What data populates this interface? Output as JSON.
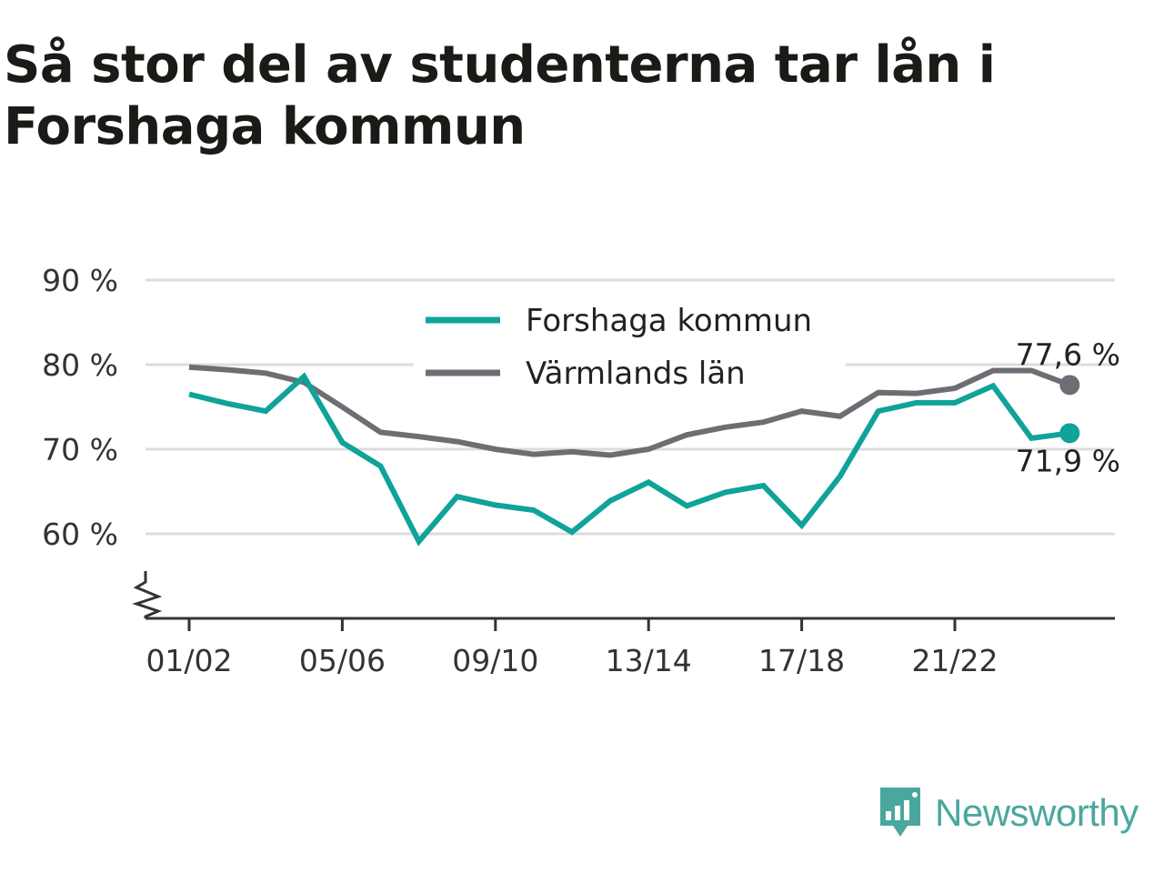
{
  "title": "Så stor del av studenterna tar lån i Forshaga kommun",
  "brand": {
    "name": "Newsworthy",
    "icon": "newsworthy-logo-icon",
    "color": "#4aa79e"
  },
  "chart_data": {
    "type": "line",
    "title": "Så stor del av studenterna tar lån i Forshaga kommun",
    "xlabel": "",
    "ylabel": "",
    "x": [
      "01/02",
      "02/03",
      "03/04",
      "04/05",
      "05/06",
      "06/07",
      "07/08",
      "08/09",
      "09/10",
      "10/11",
      "11/12",
      "12/13",
      "13/14",
      "14/15",
      "15/16",
      "16/17",
      "17/18",
      "18/19",
      "19/20",
      "20/21",
      "21/22",
      "22/23",
      "23/24",
      "24/25"
    ],
    "x_tick_labels": [
      "01/02",
      "05/06",
      "09/10",
      "13/14",
      "17/18",
      "21/22"
    ],
    "y_tick_labels": [
      "90 %",
      "80 %",
      "70 %",
      "60 %"
    ],
    "y_ticks": [
      90,
      80,
      70,
      60
    ],
    "ylim": [
      50,
      90
    ],
    "grid": true,
    "legend_position": "top-center",
    "axis_break": true,
    "series": [
      {
        "name": "Forshaga kommun",
        "color": "#0fa39a",
        "values": [
          76.5,
          75.4,
          74.5,
          78.6,
          70.8,
          68.0,
          59.1,
          64.4,
          63.4,
          62.8,
          60.2,
          63.9,
          66.1,
          63.3,
          64.9,
          65.7,
          61.0,
          66.8,
          74.5,
          75.5,
          75.5,
          77.5,
          71.3,
          71.9
        ],
        "end_label": "71,9 %"
      },
      {
        "name": "Värmlands län",
        "color": "#6e6d74",
        "values": [
          79.7,
          79.4,
          79.0,
          77.9,
          75.0,
          72.0,
          71.5,
          70.9,
          70.0,
          69.4,
          69.7,
          69.3,
          70.0,
          71.7,
          72.6,
          73.2,
          74.5,
          73.9,
          76.7,
          76.6,
          77.2,
          79.3,
          79.3,
          77.6
        ],
        "end_label": "77,6 %"
      }
    ]
  }
}
